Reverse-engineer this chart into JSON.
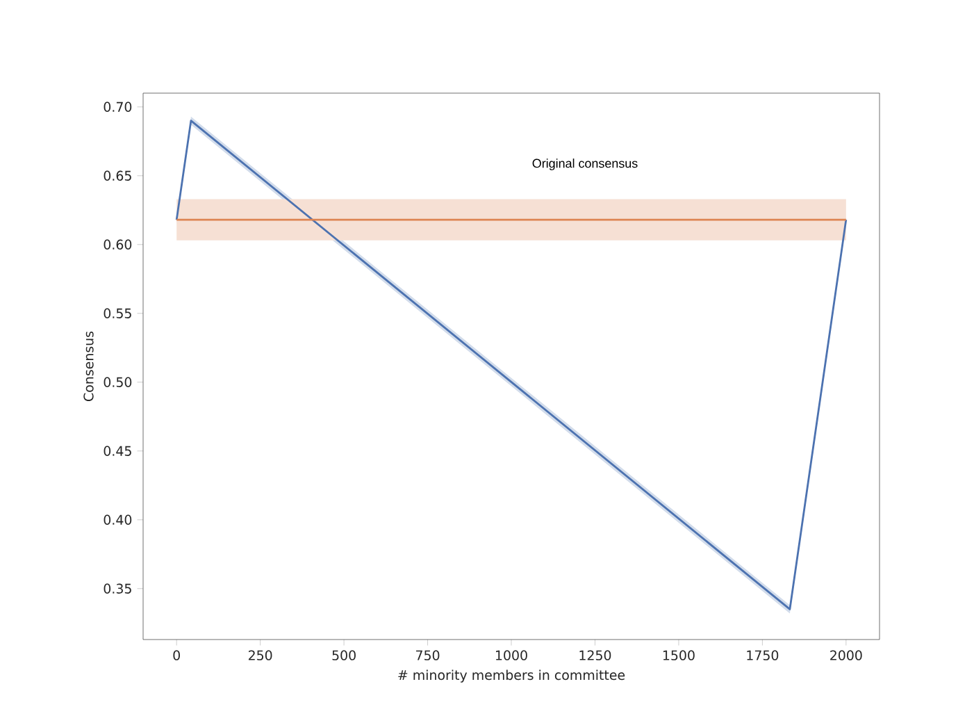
{
  "chart_data": {
    "type": "line",
    "xlabel": "# minority members in committee",
    "ylabel": "Consensus",
    "xlim": [
      -100,
      2100
    ],
    "ylim": [
      0.313,
      0.71
    ],
    "xticks": [
      0,
      250,
      500,
      750,
      1000,
      1250,
      1500,
      1750,
      2000
    ],
    "yticks": [
      {
        "value": 0.35,
        "label": "0.35"
      },
      {
        "value": 0.4,
        "label": "0.40"
      },
      {
        "value": 0.45,
        "label": "0.45"
      },
      {
        "value": 0.5,
        "label": "0.50"
      },
      {
        "value": 0.55,
        "label": "0.55"
      },
      {
        "value": 0.6,
        "label": "0.60"
      },
      {
        "value": 0.65,
        "label": "0.65"
      },
      {
        "value": 0.7,
        "label": "0.70"
      }
    ],
    "grid": false,
    "legend": false,
    "series": [
      {
        "color": "#4c72b0",
        "x": [
          0,
          43,
          1832,
          2000
        ],
        "values": [
          0.618,
          0.69,
          0.335,
          0.618
        ],
        "lower": [
          0.6145,
          0.687,
          0.332,
          0.6145
        ],
        "upper": [
          0.6205,
          0.693,
          0.338,
          0.6205
        ]
      },
      {
        "name": "Original consensus",
        "color": "#dd8452",
        "x": [
          0,
          2000
        ],
        "values": [
          0.618,
          0.618
        ],
        "lower": [
          0.603,
          0.603
        ],
        "upper": [
          0.633,
          0.633
        ]
      }
    ]
  }
}
